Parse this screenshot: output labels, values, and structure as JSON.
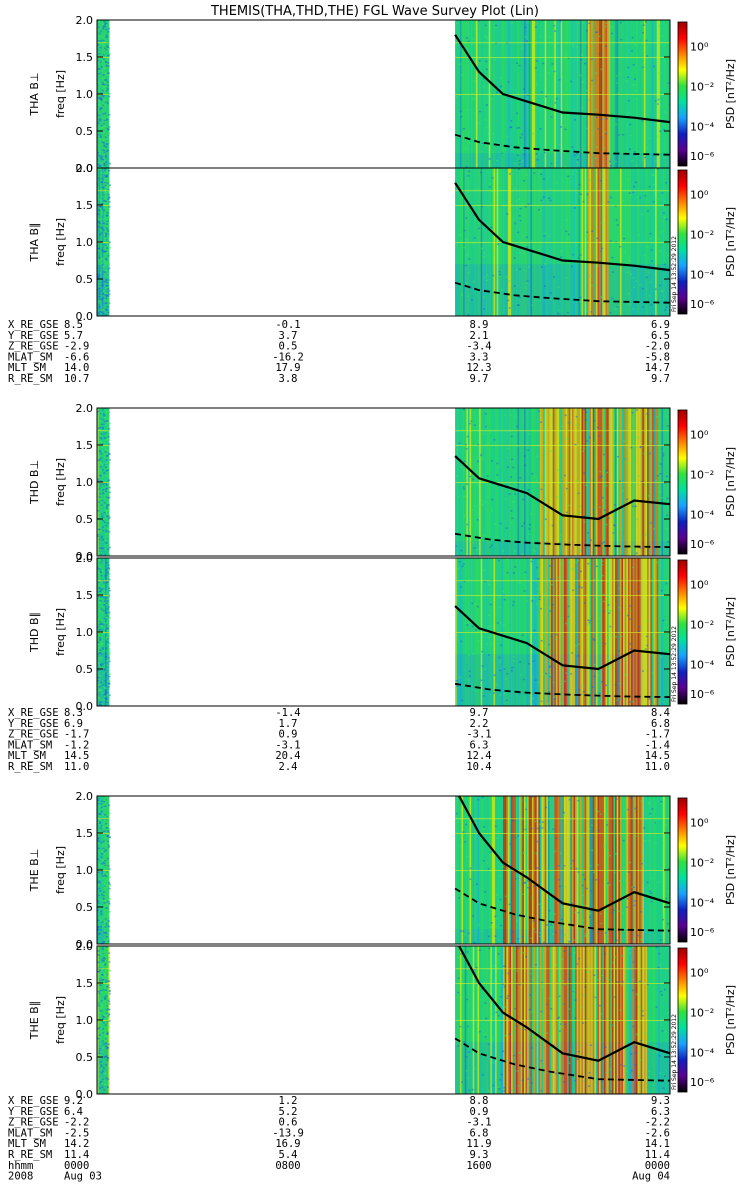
{
  "title": "THEMIS(THA,THD,THE) FGL Wave Survey Plot (Lin)",
  "freq_label": "freq [Hz]",
  "freq_ticks": [
    "0.0",
    "0.5",
    "1.0",
    "1.5",
    "2.0"
  ],
  "colorbar": {
    "label": "PSD [nT²/Hz]",
    "ticks": [
      "10⁰",
      "10⁻²",
      "10⁻⁴",
      "10⁻⁶"
    ],
    "stamp": "Fri Sep 14 13:52:29 2012",
    "colors": [
      "#000000",
      "#5a0090",
      "#1020c0",
      "#1aa0ff",
      "#00e0a0",
      "#30e040",
      "#ffff00",
      "#ff8000",
      "#ff0000",
      "#a00000"
    ]
  },
  "probes": [
    {
      "id": "THA",
      "panels": [
        {
          "ylabel": "THA B⊥"
        },
        {
          "ylabel": "THA B∥"
        }
      ],
      "ephemeris": [
        {
          "name": "X_RE_GSE",
          "values": [
            "8.5",
            "-0.1",
            "8.9",
            "6.9"
          ]
        },
        {
          "name": "Y_RE_GSE",
          "values": [
            "5.7",
            "3.7",
            "2.1",
            "6.5"
          ]
        },
        {
          "name": "Z_RE_GSE",
          "values": [
            "-2.9",
            "0.5",
            "-3.4",
            "-2.0"
          ]
        },
        {
          "name": "MLAT_SM",
          "values": [
            "-6.6",
            "-16.2",
            "3.3",
            "-5.8"
          ]
        },
        {
          "name": "MLT_SM",
          "values": [
            "14.0",
            "17.9",
            "12.3",
            "14.7"
          ]
        },
        {
          "name": "R_RE_SM",
          "values": [
            "10.7",
            "3.8",
            "9.7",
            "9.7"
          ]
        }
      ]
    },
    {
      "id": "THD",
      "panels": [
        {
          "ylabel": "THD B⊥"
        },
        {
          "ylabel": "THD B∥"
        }
      ],
      "ephemeris": [
        {
          "name": "X_RE_GSE",
          "values": [
            "8.3",
            "-1.4",
            "9.7",
            "8.4"
          ]
        },
        {
          "name": "Y_RE_GSE",
          "values": [
            "6.9",
            "1.7",
            "2.2",
            "6.8"
          ]
        },
        {
          "name": "Z_RE_GSE",
          "values": [
            "-1.7",
            "0.9",
            "-3.1",
            "-1.7"
          ]
        },
        {
          "name": "MLAT_SM",
          "values": [
            "-1.2",
            "-3.1",
            "6.3",
            "-1.4"
          ]
        },
        {
          "name": "MLT_SM",
          "values": [
            "14.5",
            "20.4",
            "12.4",
            "14.5"
          ]
        },
        {
          "name": "R_RE_SM",
          "values": [
            "11.0",
            "2.4",
            "10.4",
            "11.0"
          ]
        }
      ]
    },
    {
      "id": "THE",
      "panels": [
        {
          "ylabel": "THE B⊥"
        },
        {
          "ylabel": "THE B∥"
        }
      ],
      "ephemeris": [
        {
          "name": "X_RE_GSE",
          "values": [
            "9.2",
            "1.2",
            "8.8",
            "9.3"
          ]
        },
        {
          "name": "Y_RE_GSE",
          "values": [
            "6.4",
            "5.2",
            "0.9",
            "6.3"
          ]
        },
        {
          "name": "Z_RE_GSE",
          "values": [
            "-2.2",
            "0.6",
            "-3.1",
            "-2.2"
          ]
        },
        {
          "name": "MLAT_SM",
          "values": [
            "-2.5",
            "-13.9",
            "6.8",
            "-2.6"
          ]
        },
        {
          "name": "MLT_SM",
          "values": [
            "14.2",
            "16.9",
            "11.9",
            "14.1"
          ]
        },
        {
          "name": "R_RE_SM",
          "values": [
            "11.4",
            "5.4",
            "9.3",
            "11.4"
          ]
        }
      ]
    }
  ],
  "time_axis": {
    "row1_label": "hhmm",
    "row1_values": [
      "0000",
      "0800",
      "1600",
      "0000"
    ],
    "row2_label": "2008",
    "row2_values": [
      "Aug 03",
      "",
      "",
      "Aug 04"
    ]
  },
  "chart_data": {
    "type": "heatmap",
    "description_axis": "time vs frequency spectrogram",
    "xlabel": "",
    "ylabel": "freq [Hz]",
    "ylim": [
      0,
      2.0
    ],
    "x_range_hours": [
      0,
      24
    ],
    "data_start_hours": [
      {
        "probe": "THA",
        "edge_end": 0.5,
        "main_start": 15.0
      },
      {
        "probe": "THD",
        "edge_end": 0.5,
        "main_start": 15.0
      },
      {
        "probe": "THE",
        "edge_end": 0.5,
        "main_start": 15.0
      }
    ],
    "series": [
      {
        "name": "THA B⊥ solid",
        "x": [
          15.0,
          16.0,
          17.0,
          18.0,
          19.5,
          21.0,
          22.5,
          24.0
        ],
        "y": [
          1.8,
          1.3,
          1.0,
          0.9,
          0.75,
          0.72,
          0.68,
          0.62
        ]
      },
      {
        "name": "THA B⊥ dashed",
        "x": [
          15.0,
          16.0,
          17.5,
          19.0,
          21.0,
          24.0
        ],
        "y": [
          0.45,
          0.35,
          0.28,
          0.24,
          0.2,
          0.18
        ]
      },
      {
        "name": "THA B∥ solid",
        "x": [
          15.0,
          16.0,
          17.0,
          18.0,
          19.5,
          21.0,
          22.5,
          24.0
        ],
        "y": [
          1.8,
          1.3,
          1.0,
          0.9,
          0.75,
          0.72,
          0.68,
          0.62
        ]
      },
      {
        "name": "THA B∥ dashed",
        "x": [
          15.0,
          16.0,
          17.5,
          19.0,
          21.0,
          24.0
        ],
        "y": [
          0.45,
          0.35,
          0.28,
          0.24,
          0.2,
          0.18
        ]
      },
      {
        "name": "THD B⊥ solid",
        "x": [
          15.0,
          16.0,
          17.0,
          18.0,
          19.5,
          21.0,
          22.5,
          24.0
        ],
        "y": [
          1.35,
          1.05,
          0.95,
          0.85,
          0.55,
          0.5,
          0.75,
          0.7
        ]
      },
      {
        "name": "THD B⊥ dashed",
        "x": [
          15.0,
          16.5,
          18.0,
          20.0,
          22.0,
          24.0
        ],
        "y": [
          0.3,
          0.22,
          0.18,
          0.15,
          0.13,
          0.12
        ]
      },
      {
        "name": "THD B∥ solid",
        "x": [
          15.0,
          16.0,
          17.0,
          18.0,
          19.5,
          21.0,
          22.5,
          24.0
        ],
        "y": [
          1.35,
          1.05,
          0.95,
          0.85,
          0.55,
          0.5,
          0.75,
          0.7
        ]
      },
      {
        "name": "THD B∥ dashed",
        "x": [
          15.0,
          16.5,
          18.0,
          20.0,
          22.0,
          24.0
        ],
        "y": [
          0.3,
          0.22,
          0.18,
          0.15,
          0.13,
          0.12
        ]
      },
      {
        "name": "THE B⊥ solid",
        "x": [
          15.0,
          16.0,
          17.0,
          18.0,
          19.5,
          21.0,
          22.5,
          24.0
        ],
        "y": [
          2.1,
          1.5,
          1.1,
          0.9,
          0.55,
          0.45,
          0.7,
          0.55
        ]
      },
      {
        "name": "THE B⊥ dashed",
        "x": [
          15.0,
          16.0,
          17.5,
          19.0,
          21.0,
          24.0
        ],
        "y": [
          0.75,
          0.55,
          0.4,
          0.3,
          0.2,
          0.18
        ]
      },
      {
        "name": "THE B∥ solid",
        "x": [
          15.0,
          16.0,
          17.0,
          18.0,
          19.5,
          21.0,
          22.5,
          24.0
        ],
        "y": [
          2.1,
          1.5,
          1.1,
          0.9,
          0.55,
          0.45,
          0.7,
          0.55
        ]
      },
      {
        "name": "THE B∥ dashed",
        "x": [
          15.0,
          16.0,
          17.5,
          19.0,
          21.0,
          24.0
        ],
        "y": [
          0.75,
          0.55,
          0.4,
          0.3,
          0.2,
          0.18
        ]
      }
    ]
  }
}
